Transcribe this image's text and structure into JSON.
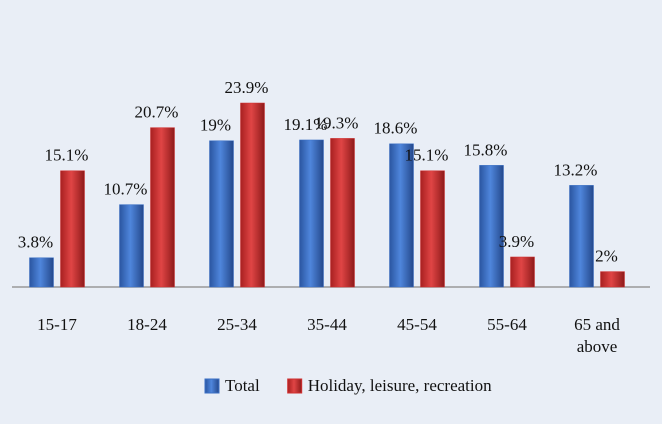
{
  "chart_data": {
    "type": "bar",
    "categories": [
      "15-17",
      "18-24",
      "25-34",
      "35-44",
      "45-54",
      "55-64",
      "65 and above"
    ],
    "series": [
      {
        "name": "Total",
        "color": "#3a6fc4",
        "values": [
          3.8,
          10.7,
          19,
          19.1,
          18.6,
          15.8,
          13.2
        ],
        "value_labels": [
          "3.8%",
          "10.7%",
          "19%",
          "19.1%",
          "18.6%",
          "15.8%",
          "13.2%"
        ]
      },
      {
        "name": "Holiday, leisure, recreation",
        "color": "#d03030",
        "values": [
          15.1,
          20.7,
          23.9,
          19.3,
          15.1,
          3.9,
          2
        ],
        "value_labels": [
          "15.1%",
          "20.7%",
          "23.9%",
          "19.3%",
          "15.1%",
          "3.9%",
          "2%"
        ]
      }
    ],
    "legend": "bottom"
  }
}
